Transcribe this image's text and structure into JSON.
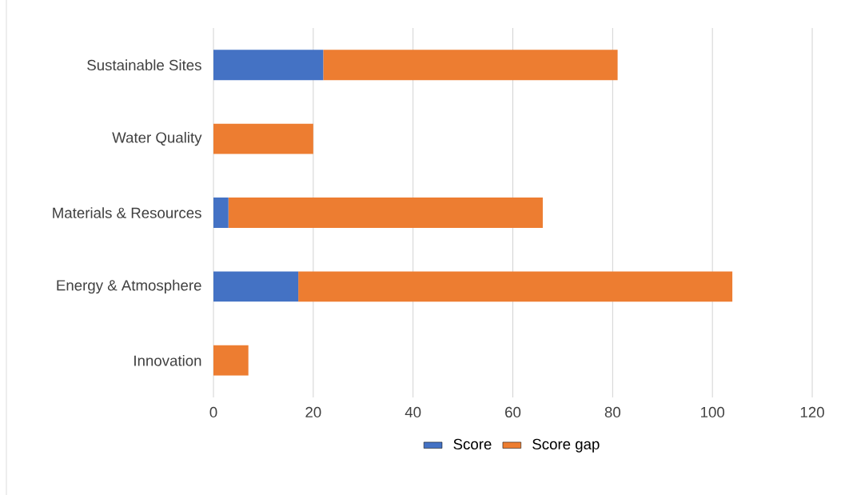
{
  "chart_data": {
    "type": "bar",
    "orientation": "horizontal",
    "stacked": true,
    "categories": [
      "Sustainable Sites",
      "Water Quality",
      "Materials & Resources",
      "Energy & Atmosphere",
      "Innovation"
    ],
    "series": [
      {
        "name": "Score",
        "color": "#4472c4",
        "values": [
          22,
          0,
          3,
          17,
          0
        ]
      },
      {
        "name": "Score gap",
        "color": "#ed7d31",
        "values": [
          59,
          20,
          63,
          87,
          7
        ]
      }
    ],
    "xlim": [
      0,
      120
    ],
    "xticks": [
      0,
      20,
      40,
      60,
      80,
      100,
      120
    ],
    "grid": "x",
    "legend": "bottom"
  }
}
